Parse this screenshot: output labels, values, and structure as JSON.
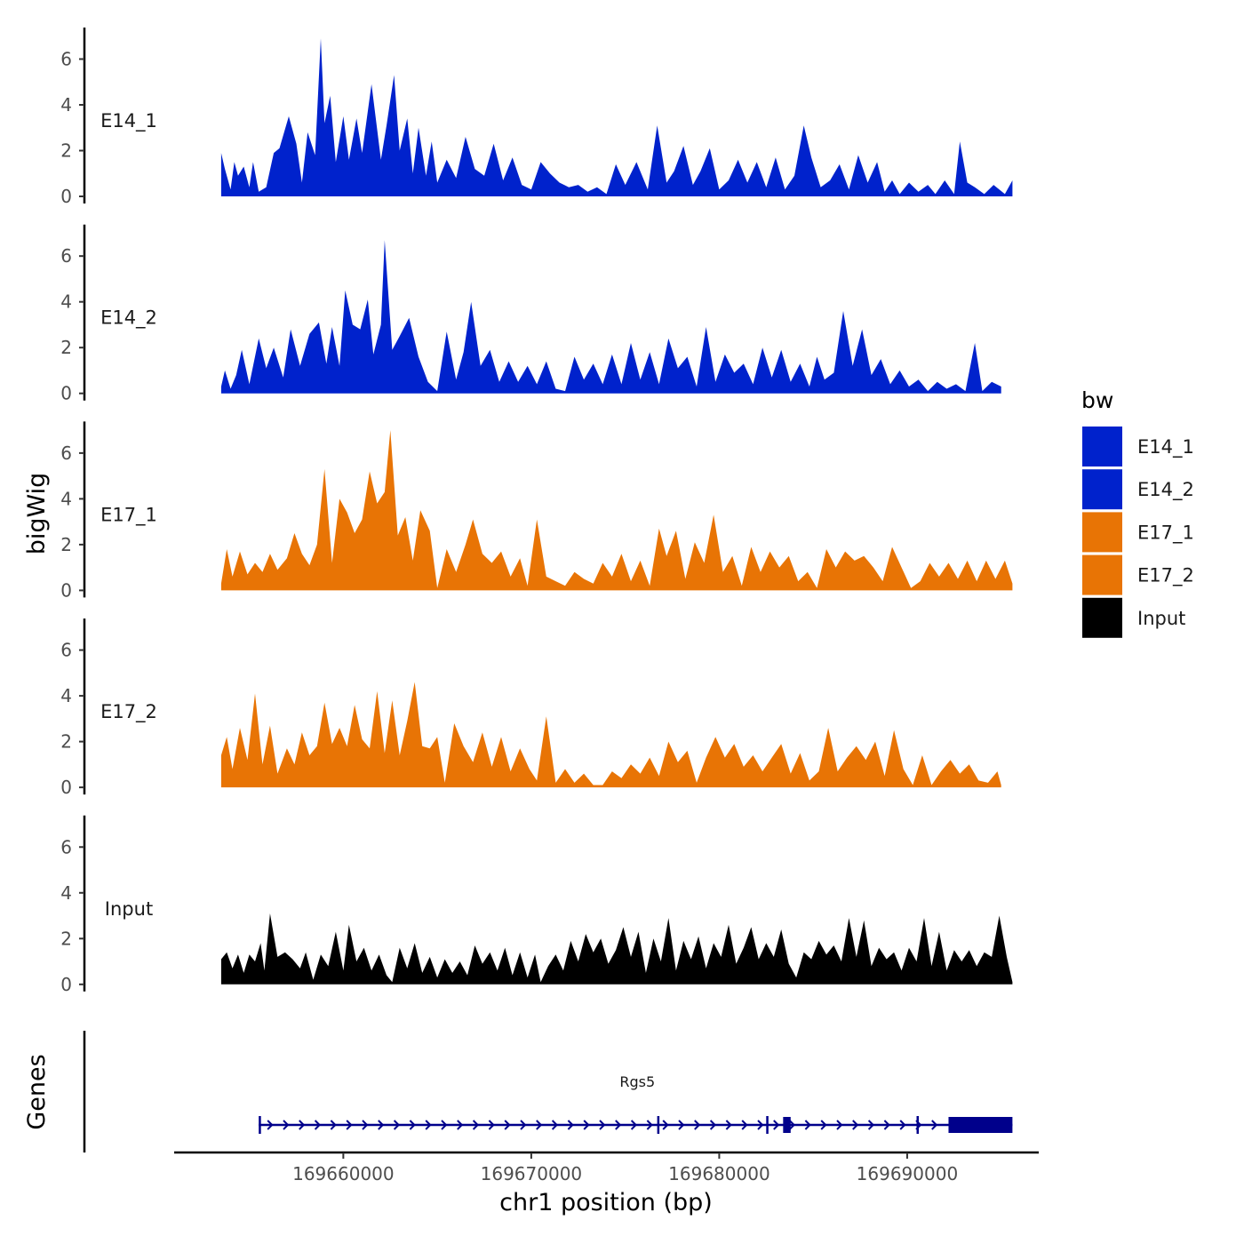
{
  "chart_data": {
    "type": "area",
    "xlabel": "chr1 position (bp)",
    "ylabel": "bigWig",
    "genes_label": "Genes",
    "chrom": "chr1",
    "xlim": [
      169651000,
      169697000
    ],
    "x_ticks": [
      169660000,
      169670000,
      169680000,
      169690000
    ],
    "x_tick_labels": [
      "169660000",
      "169670000",
      "169680000",
      "169690000"
    ],
    "ylim": [
      0,
      7.3
    ],
    "y_ticks": [
      0,
      2,
      4,
      6
    ],
    "y_tick_labels": [
      "0",
      "2",
      "4",
      "6"
    ],
    "legend": {
      "title": "bw",
      "entries": [
        {
          "label": "E14_1",
          "color": "#0022cc"
        },
        {
          "label": "E14_2",
          "color": "#0022cc"
        },
        {
          "label": "E17_1",
          "color": "#e87405"
        },
        {
          "label": "E17_2",
          "color": "#e87405"
        },
        {
          "label": "Input",
          "color": "#000000"
        }
      ]
    },
    "series": [
      {
        "name": "E14_1",
        "color": "#0022cc",
        "x": [
          169653500,
          169653700,
          169654000,
          169654200,
          169654400,
          169654700,
          169655000,
          169655200,
          169655500,
          169655900,
          169656300,
          169656600,
          169657100,
          169657500,
          169657800,
          169658100,
          169658500,
          169658800,
          169659000,
          169659300,
          169659600,
          169660000,
          169660300,
          169660700,
          169661000,
          169661500,
          169662000,
          169662300,
          169662700,
          169663000,
          169663400,
          169663700,
          169664000,
          169664400,
          169664700,
          169665000,
          169665500,
          169666000,
          169666500,
          169667000,
          169667500,
          169668000,
          169668500,
          169669000,
          169669500,
          169670000,
          169670500,
          169671000,
          169671500,
          169672000,
          169672500,
          169673000,
          169673500,
          169674000,
          169674500,
          169675000,
          169675600,
          169676200,
          169676700,
          169677200,
          169677600,
          169678100,
          169678600,
          169679000,
          169679500,
          169680000,
          169680500,
          169681000,
          169681500,
          169682000,
          169682500,
          169683000,
          169683500,
          169684000,
          169684500,
          169684900,
          169685400,
          169685900,
          169686400,
          169686900,
          169687400,
          169687900,
          169688400,
          169688800,
          169689200,
          169689600,
          169690100,
          169690600,
          169691100,
          169691500,
          169692000,
          169692500,
          169692800,
          169693200,
          169693600,
          169694100,
          169694600,
          169695200,
          169695600
        ],
        "values": [
          1.9,
          1.2,
          0.3,
          1.5,
          0.9,
          1.3,
          0.4,
          1.5,
          0.2,
          0.4,
          1.9,
          2.1,
          3.5,
          2.3,
          0.6,
          2.8,
          1.8,
          6.9,
          3.2,
          4.4,
          1.5,
          3.5,
          1.6,
          3.4,
          1.9,
          4.9,
          1.6,
          3.1,
          5.3,
          2.0,
          3.4,
          1.0,
          3.0,
          0.9,
          2.4,
          0.6,
          1.6,
          0.8,
          2.6,
          1.2,
          0.9,
          2.3,
          0.7,
          1.7,
          0.5,
          0.3,
          1.5,
          1.0,
          0.6,
          0.4,
          0.5,
          0.2,
          0.4,
          0.1,
          1.4,
          0.5,
          1.5,
          0.3,
          3.1,
          0.6,
          1.1,
          2.2,
          0.5,
          1.1,
          2.1,
          0.3,
          0.7,
          1.6,
          0.6,
          1.5,
          0.4,
          1.7,
          0.3,
          0.9,
          3.1,
          1.7,
          0.4,
          0.7,
          1.4,
          0.3,
          1.8,
          0.6,
          1.5,
          0.2,
          0.7,
          0.1,
          0.6,
          0.2,
          0.5,
          0.1,
          0.7,
          0.1,
          2.4,
          0.6,
          0.4,
          0.1,
          0.5,
          0.1,
          0.7
        ]
      },
      {
        "name": "E14_2",
        "color": "#0022cc",
        "x": [
          169653500,
          169653700,
          169654000,
          169654300,
          169654600,
          169655000,
          169655500,
          169655900,
          169656300,
          169656800,
          169657200,
          169657700,
          169658200,
          169658700,
          169659100,
          169659400,
          169659800,
          169660100,
          169660500,
          169660900,
          169661300,
          169661600,
          169662000,
          169662200,
          169662600,
          169663000,
          169663500,
          169664000,
          169664500,
          169665000,
          169665500,
          169666000,
          169666400,
          169666800,
          169667300,
          169667800,
          169668300,
          169668800,
          169669300,
          169669800,
          169670300,
          169670800,
          169671300,
          169671800,
          169672300,
          169672800,
          169673300,
          169673800,
          169674300,
          169674800,
          169675300,
          169675800,
          169676300,
          169676800,
          169677300,
          169677800,
          169678300,
          169678800,
          169679300,
          169679800,
          169680300,
          169680800,
          169681300,
          169681800,
          169682300,
          169682800,
          169683300,
          169683800,
          169684300,
          169684800,
          169685200,
          169685600,
          169686100,
          169686600,
          169687100,
          169687600,
          169688100,
          169688600,
          169689100,
          169689600,
          169690100,
          169690600,
          169691100,
          169691600,
          169692100,
          169692600,
          169693100,
          169693600,
          169694000,
          169694500,
          169695000
        ],
        "values": [
          0.3,
          1.0,
          0.2,
          0.8,
          1.9,
          0.4,
          2.4,
          1.1,
          2.0,
          0.7,
          2.8,
          1.2,
          2.6,
          3.1,
          1.3,
          2.9,
          1.2,
          4.5,
          3.0,
          2.8,
          4.1,
          1.7,
          3.0,
          6.7,
          1.9,
          2.5,
          3.3,
          1.6,
          0.5,
          0.1,
          2.7,
          0.6,
          1.8,
          4.0,
          1.2,
          1.9,
          0.5,
          1.4,
          0.5,
          1.2,
          0.4,
          1.4,
          0.2,
          0.1,
          1.6,
          0.6,
          1.3,
          0.4,
          1.7,
          0.4,
          2.2,
          0.6,
          1.8,
          0.4,
          2.4,
          1.1,
          1.6,
          0.3,
          2.9,
          0.5,
          1.7,
          0.9,
          1.3,
          0.4,
          2.0,
          0.7,
          1.9,
          0.5,
          1.3,
          0.3,
          1.6,
          0.6,
          0.9,
          3.6,
          1.2,
          2.8,
          0.8,
          1.5,
          0.4,
          1.0,
          0.3,
          0.6,
          0.1,
          0.5,
          0.2,
          0.4,
          0.1,
          2.2,
          0.1,
          0.5,
          0.3
        ]
      },
      {
        "name": "E17_1",
        "color": "#e87405",
        "x": [
          169653500,
          169653800,
          169654100,
          169654500,
          169654900,
          169655300,
          169655700,
          169656100,
          169656500,
          169657000,
          169657400,
          169657800,
          169658200,
          169658600,
          169659000,
          169659400,
          169659800,
          169660200,
          169660600,
          169661000,
          169661400,
          169661800,
          169662200,
          169662500,
          169662900,
          169663300,
          169663700,
          169664100,
          169664600,
          169665000,
          169665500,
          169666000,
          169666500,
          169666900,
          169667400,
          169667900,
          169668400,
          169668900,
          169669400,
          169669800,
          169670300,
          169670800,
          169671300,
          169671800,
          169672300,
          169672800,
          169673300,
          169673800,
          169674300,
          169674800,
          169675300,
          169675800,
          169676300,
          169676800,
          169677200,
          169677700,
          169678200,
          169678700,
          169679200,
          169679700,
          169680200,
          169680700,
          169681200,
          169681700,
          169682200,
          169682700,
          169683200,
          169683700,
          169684200,
          169684700,
          169685200,
          169685700,
          169686200,
          169686700,
          169687200,
          169687700,
          169688200,
          169688700,
          169689200,
          169689700,
          169690200,
          169690700,
          169691200,
          169691700,
          169692200,
          169692700,
          169693200,
          169693700,
          169694200,
          169694700,
          169695200,
          169695600
        ],
        "values": [
          0.3,
          1.8,
          0.6,
          1.7,
          0.7,
          1.2,
          0.8,
          1.6,
          0.9,
          1.4,
          2.5,
          1.6,
          1.1,
          2.0,
          5.3,
          1.2,
          4.0,
          3.4,
          2.5,
          3.1,
          5.2,
          3.8,
          4.3,
          7.0,
          2.4,
          3.2,
          1.3,
          3.5,
          2.6,
          0.1,
          1.8,
          0.8,
          2.0,
          3.1,
          1.6,
          1.2,
          1.7,
          0.6,
          1.4,
          0.2,
          3.1,
          0.6,
          0.4,
          0.2,
          0.8,
          0.5,
          0.3,
          1.2,
          0.6,
          1.6,
          0.4,
          1.3,
          0.2,
          2.7,
          1.5,
          2.6,
          0.5,
          2.1,
          1.2,
          3.3,
          0.8,
          1.5,
          0.2,
          1.9,
          0.8,
          1.7,
          1.0,
          1.5,
          0.4,
          0.8,
          0.1,
          1.8,
          1.0,
          1.7,
          1.3,
          1.5,
          1.0,
          0.4,
          1.9,
          1.0,
          0.1,
          0.4,
          1.2,
          0.6,
          1.2,
          0.5,
          1.3,
          0.4,
          1.3,
          0.5,
          1.3,
          0.3
        ]
      },
      {
        "name": "E17_2",
        "color": "#e87405",
        "x": [
          169653500,
          169653800,
          169654100,
          169654500,
          169654900,
          169655300,
          169655700,
          169656100,
          169656500,
          169657000,
          169657400,
          169657800,
          169658200,
          169658600,
          169659000,
          169659400,
          169659800,
          169660200,
          169660600,
          169661000,
          169661400,
          169661800,
          169662200,
          169662600,
          169663000,
          169663400,
          169663800,
          169664200,
          169664600,
          169665000,
          169665400,
          169665900,
          169666400,
          169666900,
          169667400,
          169667900,
          169668400,
          169668900,
          169669400,
          169669900,
          169670300,
          169670800,
          169671300,
          169671800,
          169672300,
          169672800,
          169673300,
          169673800,
          169674300,
          169674800,
          169675300,
          169675800,
          169676300,
          169676800,
          169677300,
          169677800,
          169678300,
          169678800,
          169679300,
          169679800,
          169680300,
          169680800,
          169681300,
          169681800,
          169682300,
          169682800,
          169683300,
          169683800,
          169684300,
          169684800,
          169685300,
          169685800,
          169686300,
          169686800,
          169687300,
          169687800,
          169688300,
          169688800,
          169689300,
          169689800,
          169690300,
          169690800,
          169691300,
          169691800,
          169692300,
          169692800,
          169693300,
          169693800,
          169694300,
          169694800,
          169695000
        ],
        "values": [
          1.4,
          2.2,
          0.8,
          2.6,
          1.2,
          4.1,
          1.0,
          2.7,
          0.6,
          1.7,
          1.0,
          2.4,
          1.4,
          1.8,
          3.7,
          1.9,
          2.6,
          1.8,
          3.6,
          2.1,
          1.7,
          4.2,
          1.5,
          3.8,
          1.4,
          2.9,
          4.6,
          1.8,
          1.7,
          2.2,
          0.2,
          2.8,
          1.8,
          1.1,
          2.4,
          0.9,
          2.2,
          0.7,
          1.7,
          0.8,
          0.3,
          3.1,
          0.2,
          0.8,
          0.2,
          0.6,
          0.1,
          0.1,
          0.7,
          0.4,
          1.0,
          0.6,
          1.3,
          0.5,
          2.0,
          1.1,
          1.6,
          0.2,
          1.3,
          2.2,
          1.3,
          1.9,
          0.9,
          1.4,
          0.7,
          1.3,
          1.9,
          0.6,
          1.5,
          0.3,
          0.7,
          2.6,
          0.7,
          1.3,
          1.8,
          1.2,
          2.0,
          0.5,
          2.5,
          0.8,
          0.1,
          1.4,
          0.1,
          0.7,
          1.2,
          0.6,
          1.0,
          0.3,
          0.2,
          0.7,
          0.1
        ]
      },
      {
        "name": "Input",
        "color": "#000000",
        "x": [
          169653500,
          169653800,
          169654100,
          169654400,
          169654700,
          169655000,
          169655300,
          169655600,
          169655800,
          169656100,
          169656500,
          169656900,
          169657300,
          169657700,
          169658000,
          169658400,
          169658800,
          169659200,
          169659600,
          169660000,
          169660300,
          169660700,
          169661100,
          169661500,
          169661900,
          169662300,
          169662600,
          169663000,
          169663400,
          169663800,
          169664200,
          169664600,
          169665000,
          169665400,
          169665800,
          169666200,
          169666600,
          169667000,
          169667400,
          169667800,
          169668200,
          169668600,
          169669000,
          169669400,
          169669800,
          169670200,
          169670500,
          169670900,
          169671300,
          169671700,
          169672100,
          169672500,
          169672900,
          169673300,
          169673700,
          169674100,
          169674500,
          169674900,
          169675300,
          169675700,
          169676100,
          169676500,
          169676900,
          169677300,
          169677700,
          169678100,
          169678500,
          169678900,
          169679300,
          169679700,
          169680100,
          169680500,
          169680900,
          169681300,
          169681700,
          169682100,
          169682500,
          169682900,
          169683300,
          169683700,
          169684100,
          169684500,
          169684900,
          169685300,
          169685700,
          169686100,
          169686500,
          169686900,
          169687300,
          169687700,
          169688100,
          169688500,
          169688900,
          169689300,
          169689700,
          169690100,
          169690500,
          169690900,
          169691300,
          169691700,
          169692100,
          169692500,
          169692900,
          169693300,
          169693700,
          169694100,
          169694500,
          169694900,
          169695300,
          169695600
        ],
        "values": [
          1.1,
          1.4,
          0.7,
          1.3,
          0.5,
          1.3,
          1.0,
          1.8,
          0.6,
          3.1,
          1.2,
          1.4,
          1.1,
          0.7,
          1.4,
          0.2,
          1.3,
          0.8,
          2.3,
          0.6,
          2.6,
          1.0,
          1.6,
          0.6,
          1.3,
          0.4,
          0.1,
          1.6,
          0.7,
          1.8,
          0.5,
          1.2,
          0.3,
          1.1,
          0.5,
          1.0,
          0.4,
          1.7,
          0.9,
          1.4,
          0.6,
          1.6,
          0.4,
          1.4,
          0.3,
          1.3,
          0.1,
          0.8,
          1.3,
          0.6,
          1.9,
          1.0,
          2.2,
          1.4,
          2.0,
          0.9,
          1.5,
          2.5,
          1.2,
          2.3,
          0.5,
          2.0,
          1.0,
          2.9,
          0.6,
          1.9,
          1.1,
          2.1,
          0.7,
          1.8,
          1.2,
          2.6,
          0.9,
          1.6,
          2.5,
          1.1,
          1.8,
          1.2,
          2.4,
          0.9,
          0.3,
          1.4,
          1.1,
          1.9,
          1.3,
          1.7,
          1.0,
          2.9,
          1.2,
          2.8,
          0.8,
          1.6,
          1.1,
          1.4,
          0.6,
          1.6,
          1.0,
          2.9,
          0.8,
          2.3,
          0.6,
          1.5,
          1.0,
          1.5,
          0.8,
          1.4,
          1.2,
          3.0,
          1.2,
          0.1
        ]
      }
    ],
    "gene": {
      "name": "Rgs5",
      "color": "#00008b",
      "start": 169655500,
      "end": 169695600,
      "strand": "+",
      "exons": [
        [
          169655500,
          169655600
        ],
        [
          169676700,
          169676800
        ],
        [
          169682500,
          169682600
        ],
        [
          169683400,
          169683800
        ],
        [
          169690500,
          169690600
        ],
        [
          169692200,
          169695600
        ]
      ]
    }
  }
}
